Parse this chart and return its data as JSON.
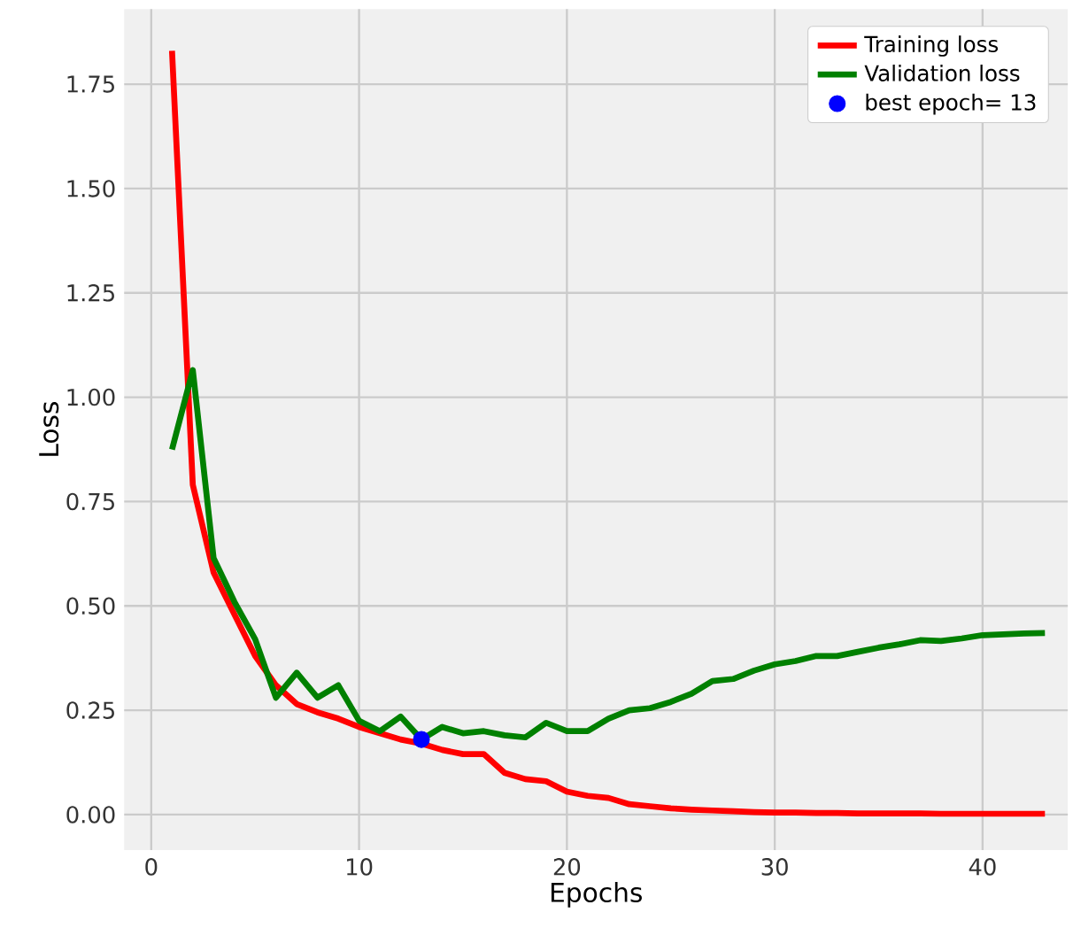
{
  "chart_data": {
    "type": "line",
    "xlabel": "Epochs",
    "ylabel": "Loss",
    "x": [
      1,
      2,
      3,
      4,
      5,
      6,
      7,
      8,
      9,
      10,
      11,
      12,
      13,
      14,
      15,
      16,
      17,
      18,
      19,
      20,
      21,
      22,
      23,
      24,
      25,
      26,
      27,
      28,
      29,
      30,
      31,
      32,
      33,
      34,
      35,
      36,
      37,
      38,
      39,
      40,
      41,
      42,
      43
    ],
    "series": [
      {
        "name": "Training loss",
        "color": "#ff0000",
        "values": [
          1.83,
          0.79,
          0.58,
          0.48,
          0.38,
          0.31,
          0.265,
          0.245,
          0.23,
          0.21,
          0.195,
          0.18,
          0.17,
          0.155,
          0.145,
          0.145,
          0.1,
          0.085,
          0.08,
          0.055,
          0.045,
          0.04,
          0.025,
          0.02,
          0.015,
          0.012,
          0.01,
          0.008,
          0.006,
          0.005,
          0.005,
          0.004,
          0.004,
          0.003,
          0.003,
          0.003,
          0.003,
          0.002,
          0.002,
          0.002,
          0.002,
          0.002,
          0.002
        ]
      },
      {
        "name": "Validation loss",
        "color": "#008000",
        "values": [
          0.875,
          1.065,
          0.615,
          0.51,
          0.42,
          0.28,
          0.34,
          0.28,
          0.31,
          0.225,
          0.2,
          0.235,
          0.18,
          0.21,
          0.195,
          0.2,
          0.19,
          0.185,
          0.22,
          0.2,
          0.2,
          0.23,
          0.25,
          0.255,
          0.27,
          0.29,
          0.32,
          0.325,
          0.345,
          0.36,
          0.368,
          0.38,
          0.38,
          0.39,
          0.4,
          0.408,
          0.418,
          0.416,
          0.422,
          0.43,
          0.432,
          0.434,
          0.435
        ]
      },
      {
        "name": "best epoch= 13",
        "type": "scatter",
        "color": "#0000ff",
        "marker": "circle",
        "x": [
          13
        ],
        "values": [
          0.18
        ]
      }
    ],
    "xlim": [
      -1.3,
      44.1
    ],
    "ylim": [
      -0.085,
      1.93
    ],
    "xticks": [
      0,
      10,
      20,
      30,
      40
    ],
    "yticks": [
      {
        "value": 0,
        "label": "0.00"
      },
      {
        "value": 0.25,
        "label": "0.25"
      },
      {
        "value": 0.5,
        "label": "0.50"
      },
      {
        "value": 0.75,
        "label": "0.75"
      },
      {
        "value": 1,
        "label": "1.00"
      },
      {
        "value": 1.25,
        "label": "1.25"
      },
      {
        "value": 1.5,
        "label": "1.50"
      },
      {
        "value": 1.75,
        "label": "1.75"
      }
    ],
    "grid": true,
    "legend": "top right",
    "line_style": "solid"
  }
}
